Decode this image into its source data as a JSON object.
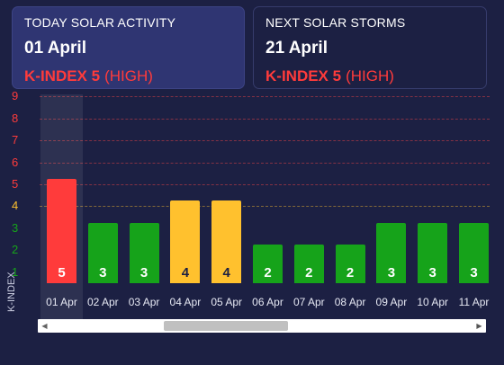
{
  "today": {
    "title": "TODAY SOLAR ACTIVITY",
    "date": "01 April",
    "k_prefix": "K-INDEX 5",
    "k_level": "(HIGH)"
  },
  "next": {
    "title": "NEXT SOLAR STORMS",
    "date": "21 April",
    "k_prefix": "K-INDEX 5",
    "k_level": "(HIGH)"
  },
  "colors": {
    "background": "#1c2043",
    "high": "#ff3b3b",
    "moderate": "#ffc12e",
    "low": "#16a31a"
  },
  "scrollbar": {
    "left_icon": "arrow-left-icon",
    "right_icon": "arrow-right-icon"
  },
  "chart_data": {
    "type": "bar",
    "ylabel": "K-INDEX",
    "ylim": [
      0,
      9
    ],
    "y_ticks": [
      "1",
      "2",
      "3",
      "4",
      "5",
      "6",
      "7",
      "8",
      "9"
    ],
    "categories": [
      "01 Apr",
      "02 Apr",
      "03 Apr",
      "04 Apr",
      "05 Apr",
      "06 Apr",
      "07 Apr",
      "08 Apr",
      "09 Apr",
      "10 Apr",
      "11 Apr"
    ],
    "values": [
      5,
      3,
      3,
      4,
      4,
      2,
      2,
      2,
      3,
      3,
      3
    ],
    "highlighted_category": "01 Apr",
    "grid": true
  }
}
